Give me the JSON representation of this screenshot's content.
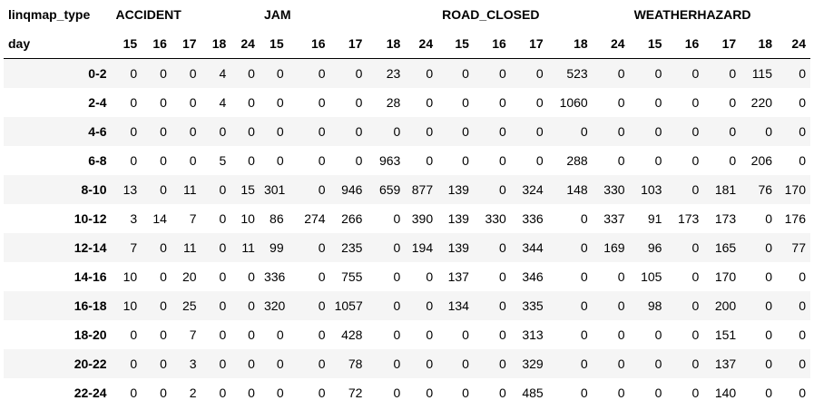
{
  "table": {
    "level0_name": "linqmap_type",
    "level1_name": "day",
    "groups": [
      {
        "label": "ACCIDENT",
        "days": [
          "15",
          "16",
          "17",
          "18",
          "24"
        ]
      },
      {
        "label": "JAM",
        "days": [
          "15",
          "16",
          "17",
          "18",
          "24"
        ]
      },
      {
        "label": "ROAD_CLOSED",
        "days": [
          "15",
          "16",
          "17",
          "18",
          "24"
        ]
      },
      {
        "label": "WEATHERHAZARD",
        "days": [
          "15",
          "16",
          "17",
          "18",
          "24"
        ]
      }
    ],
    "rows": [
      {
        "label": "0-2",
        "values": [
          "0",
          "0",
          "0",
          "4",
          "0",
          "0",
          "0",
          "0",
          "23",
          "0",
          "0",
          "0",
          "0",
          "523",
          "0",
          "0",
          "0",
          "0",
          "115",
          "0"
        ]
      },
      {
        "label": "2-4",
        "values": [
          "0",
          "0",
          "0",
          "4",
          "0",
          "0",
          "0",
          "0",
          "28",
          "0",
          "0",
          "0",
          "0",
          "1060",
          "0",
          "0",
          "0",
          "0",
          "220",
          "0"
        ]
      },
      {
        "label": "4-6",
        "values": [
          "0",
          "0",
          "0",
          "0",
          "0",
          "0",
          "0",
          "0",
          "0",
          "0",
          "0",
          "0",
          "0",
          "0",
          "0",
          "0",
          "0",
          "0",
          "0",
          "0"
        ]
      },
      {
        "label": "6-8",
        "values": [
          "0",
          "0",
          "0",
          "5",
          "0",
          "0",
          "0",
          "0",
          "963",
          "0",
          "0",
          "0",
          "0",
          "288",
          "0",
          "0",
          "0",
          "0",
          "206",
          "0"
        ]
      },
      {
        "label": "8-10",
        "values": [
          "13",
          "0",
          "11",
          "0",
          "15",
          "301",
          "0",
          "946",
          "659",
          "877",
          "139",
          "0",
          "324",
          "148",
          "330",
          "103",
          "0",
          "181",
          "76",
          "170"
        ]
      },
      {
        "label": "10-12",
        "values": [
          "3",
          "14",
          "7",
          "0",
          "10",
          "86",
          "274",
          "266",
          "0",
          "390",
          "139",
          "330",
          "336",
          "0",
          "337",
          "91",
          "173",
          "173",
          "0",
          "176"
        ]
      },
      {
        "label": "12-14",
        "values": [
          "7",
          "0",
          "11",
          "0",
          "11",
          "99",
          "0",
          "235",
          "0",
          "194",
          "139",
          "0",
          "344",
          "0",
          "169",
          "96",
          "0",
          "165",
          "0",
          "77"
        ]
      },
      {
        "label": "14-16",
        "values": [
          "10",
          "0",
          "20",
          "0",
          "0",
          "336",
          "0",
          "755",
          "0",
          "0",
          "137",
          "0",
          "346",
          "0",
          "0",
          "105",
          "0",
          "170",
          "0",
          "0"
        ]
      },
      {
        "label": "16-18",
        "values": [
          "10",
          "0",
          "25",
          "0",
          "0",
          "320",
          "0",
          "1057",
          "0",
          "0",
          "134",
          "0",
          "335",
          "0",
          "0",
          "98",
          "0",
          "200",
          "0",
          "0"
        ]
      },
      {
        "label": "18-20",
        "values": [
          "0",
          "0",
          "7",
          "0",
          "0",
          "0",
          "0",
          "428",
          "0",
          "0",
          "0",
          "0",
          "313",
          "0",
          "0",
          "0",
          "0",
          "151",
          "0",
          "0"
        ]
      },
      {
        "label": "20-22",
        "values": [
          "0",
          "0",
          "3",
          "0",
          "0",
          "0",
          "0",
          "78",
          "0",
          "0",
          "0",
          "0",
          "329",
          "0",
          "0",
          "0",
          "0",
          "137",
          "0",
          "0"
        ]
      },
      {
        "label": "22-24",
        "values": [
          "0",
          "0",
          "2",
          "0",
          "0",
          "0",
          "0",
          "72",
          "0",
          "0",
          "0",
          "0",
          "485",
          "0",
          "0",
          "0",
          "0",
          "140",
          "0",
          "0"
        ]
      }
    ]
  }
}
